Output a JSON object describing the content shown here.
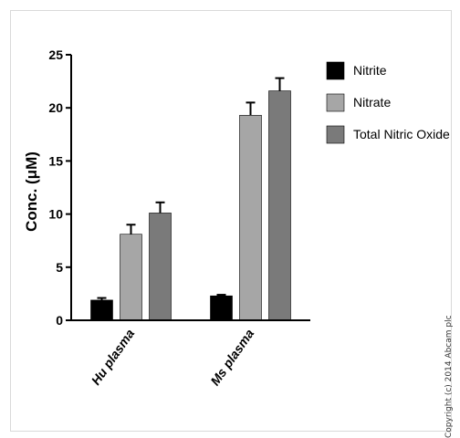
{
  "chart_data": {
    "type": "bar",
    "title": "",
    "xlabel": "",
    "ylabel": "Conc. (μM)",
    "ylim": [
      0,
      25
    ],
    "yticks": [
      "0",
      "5",
      "10",
      "15",
      "20",
      "25"
    ],
    "categories": [
      "Hu plasma",
      "Ms plasma"
    ],
    "series": [
      {
        "name": "Nitrite",
        "color": "#000000",
        "values": [
          1.9,
          2.3
        ],
        "errors": [
          0.2,
          0.1
        ]
      },
      {
        "name": "Nitrate",
        "color": "#a6a6a6",
        "values": [
          8.1,
          19.3
        ],
        "errors": [
          0.9,
          1.2
        ]
      },
      {
        "name": "Total Nitric Oxide",
        "color": "#7a7a7a",
        "values": [
          10.1,
          21.6
        ],
        "errors": [
          1.0,
          1.2
        ]
      }
    ],
    "legend": "right",
    "grid": false
  },
  "watermark": "Copyright (c) 2014 Abcam plc"
}
